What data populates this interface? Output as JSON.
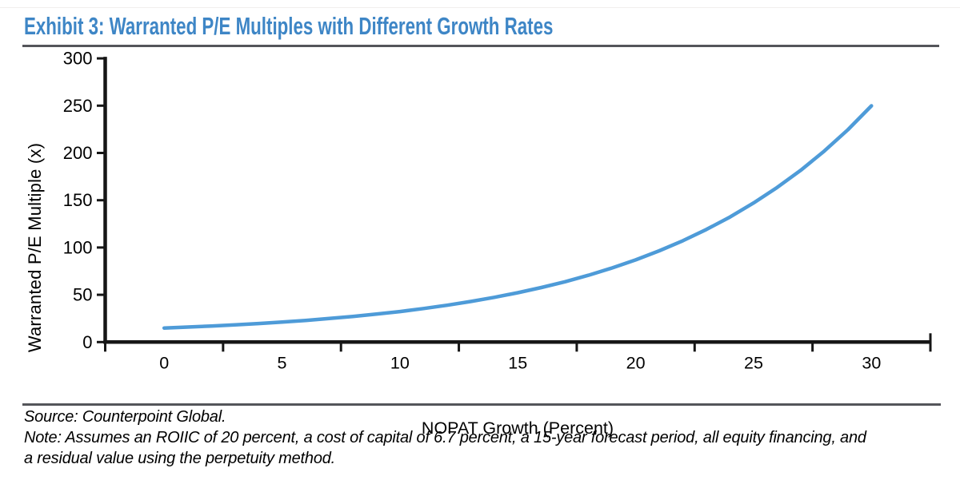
{
  "page": {
    "title": "Exhibit 3: Warranted P/E Multiples with Different Growth Rates",
    "source": "Source: Counterpoint Global.",
    "note_lines": [
      "Note: Assumes an ROIIC of 20 percent, a cost of capital of 6.7 percent, a 15-year forecast period, all equity financing, and",
      "a residual value using the perpetuity method."
    ],
    "colors": {
      "title": "#3E86C6",
      "rule": "#54555A",
      "axis": "#161616",
      "text": "#000000"
    }
  },
  "chart_data": {
    "type": "line",
    "title": "",
    "xlabel": "NOPAT Growth (Percent)",
    "ylabel": "Warranted P/E Multiple (x)",
    "x_ticks": [
      0,
      5,
      10,
      15,
      20,
      25,
      30
    ],
    "y_ticks": [
      0,
      50,
      100,
      150,
      200,
      250,
      300
    ],
    "xlim": [
      -2.5,
      32.5
    ],
    "ylim": [
      0,
      300
    ],
    "grid": false,
    "legend": "none",
    "line_color": "#4E9BD8",
    "series": [
      {
        "name": "Warranted P/E Multiple",
        "x": [
          0,
          1,
          2,
          3,
          4,
          5,
          6,
          7,
          8,
          9,
          10,
          11,
          12,
          13,
          14,
          15,
          16,
          17,
          18,
          19,
          20,
          21,
          22,
          23,
          24,
          25,
          26,
          27,
          28,
          29,
          30
        ],
        "values": [
          14.9,
          15.9,
          17.0,
          18.2,
          19.6,
          21.2,
          22.9,
          24.9,
          27.1,
          29.6,
          32.3,
          35.5,
          38.9,
          42.9,
          47.3,
          52.2,
          57.7,
          63.8,
          70.7,
          78.4,
          86.9,
          96.5,
          107.2,
          119.1,
          132.3,
          147.1,
          163.5,
          181.7,
          202.0,
          224.5,
          249.8
        ]
      }
    ]
  }
}
